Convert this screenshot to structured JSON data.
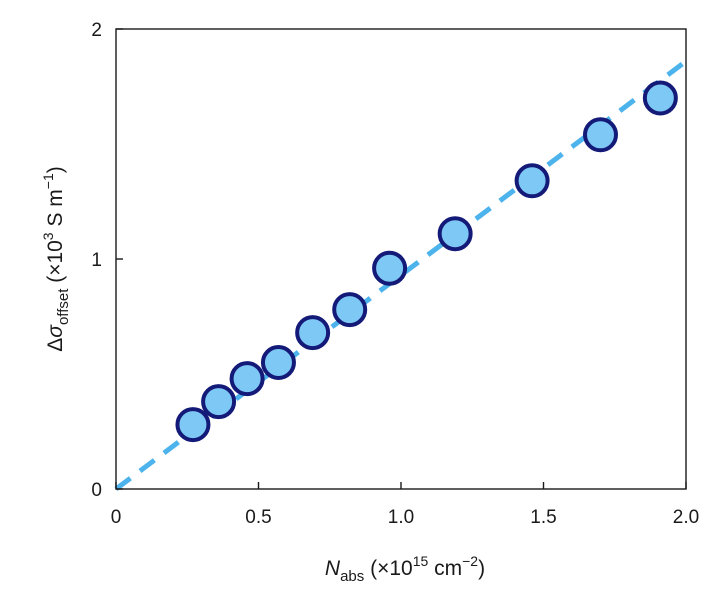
{
  "chart_data": {
    "type": "scatter",
    "xlabel": {
      "symbol": "N",
      "subscript": "abs",
      "units_prefix": " (×10",
      "units_exp": "15",
      "units_mid": " cm",
      "units_exp2": "−2",
      "units_suffix": ")"
    },
    "ylabel": {
      "prefix": "Δ",
      "symbol": "σ",
      "subscript": "offset",
      "units_prefix": " (×10",
      "units_exp": "3",
      "units_mid": " S m",
      "units_exp2": "−1",
      "units_suffix": ")"
    },
    "xlim": [
      0,
      2.0
    ],
    "ylim": [
      0,
      2
    ],
    "x_ticks": [
      {
        "value": 0,
        "label": "0"
      },
      {
        "value": 0.5,
        "label": "0.5"
      },
      {
        "value": 1.0,
        "label": "1.0"
      },
      {
        "value": 1.5,
        "label": "1.5"
      },
      {
        "value": 2.0,
        "label": "2.0"
      }
    ],
    "y_ticks": [
      {
        "value": 0,
        "label": "0"
      },
      {
        "value": 1,
        "label": "1"
      },
      {
        "value": 2,
        "label": "2"
      }
    ],
    "series": [
      {
        "x": [
          0.27,
          0.36,
          0.46,
          0.57,
          0.69,
          0.82,
          0.96,
          1.19,
          1.46,
          1.7,
          1.91
        ],
        "y": [
          0.28,
          0.38,
          0.48,
          0.55,
          0.68,
          0.78,
          0.96,
          1.11,
          1.34,
          1.54,
          1.7
        ],
        "marker_face": "#7ec8f5",
        "marker_edge": "#141a78"
      }
    ],
    "fit_line": {
      "x": [
        0,
        2.0
      ],
      "y": [
        0,
        1.86
      ],
      "color": "#4cb3ec",
      "style": "dashed"
    },
    "grid": false,
    "legend": "none"
  }
}
